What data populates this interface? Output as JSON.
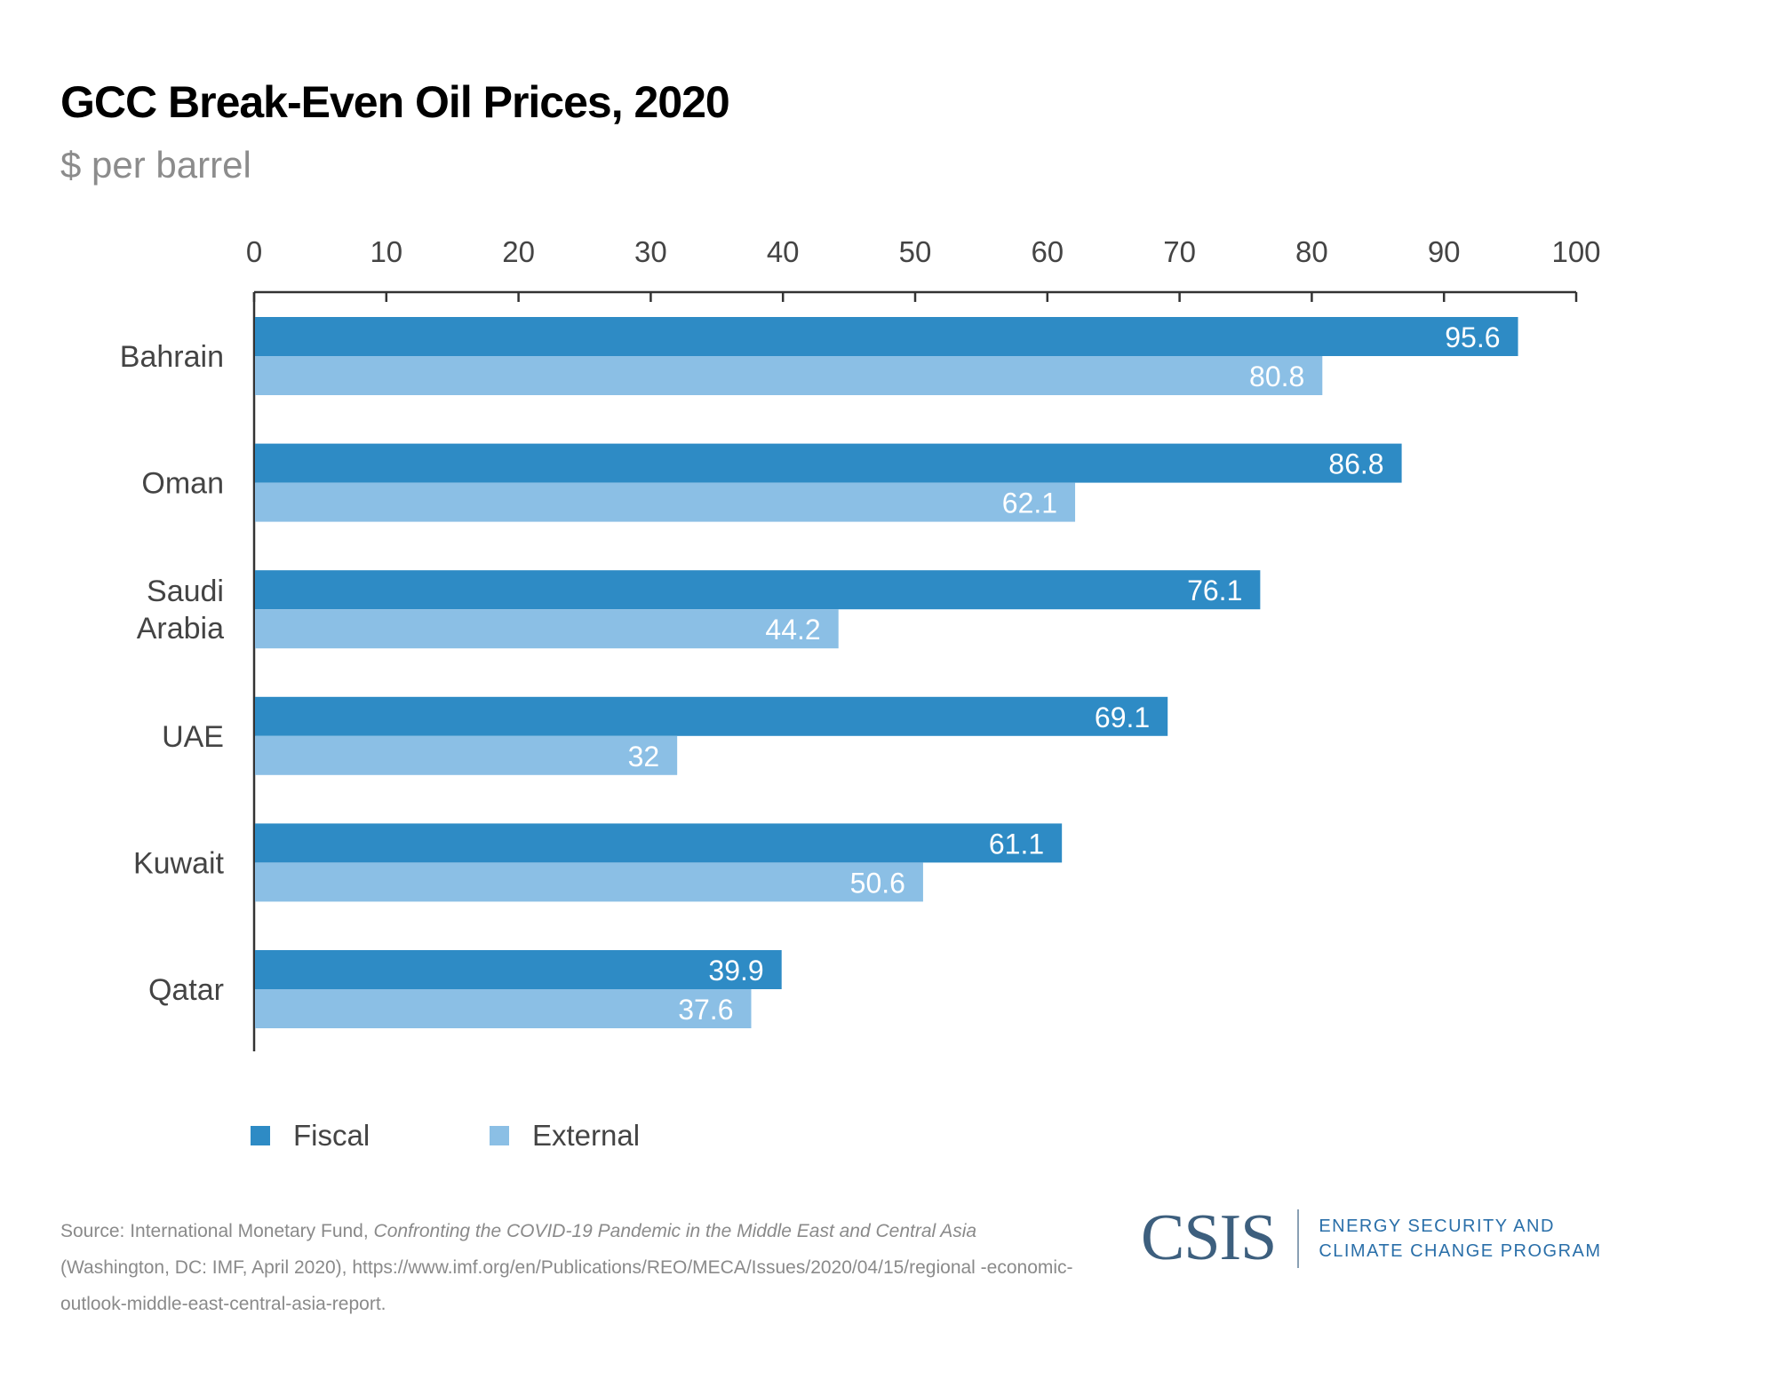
{
  "chart_data": {
    "type": "bar",
    "orientation": "horizontal",
    "title": "GCC Break-Even Oil Prices, 2020",
    "subtitle": "$ per barrel",
    "categories": [
      "Bahrain",
      "Oman",
      "Saudi Arabia",
      "UAE",
      "Kuwait",
      "Qatar"
    ],
    "category_lines": [
      [
        "Bahrain"
      ],
      [
        "Oman"
      ],
      [
        "Saudi",
        "Arabia"
      ],
      [
        "UAE"
      ],
      [
        "Kuwait"
      ],
      [
        "Qatar"
      ]
    ],
    "series": [
      {
        "name": "Fiscal",
        "color": "#2e8bc5",
        "values": [
          95.6,
          86.8,
          76.1,
          69.1,
          61.1,
          39.9
        ],
        "labels": [
          "95.6",
          "86.8",
          "76.1",
          "69.1",
          "61.1",
          "39.9"
        ]
      },
      {
        "name": "External",
        "color": "#8bbfe5",
        "values": [
          80.8,
          62.1,
          44.2,
          32,
          50.6,
          37.6
        ],
        "labels": [
          "80.8",
          "62.1",
          "44.2",
          "32",
          "50.6",
          "37.6"
        ]
      }
    ],
    "xlim": [
      0,
      100
    ],
    "xticks": [
      "0",
      "10",
      "20",
      "30",
      "40",
      "50",
      "60",
      "70",
      "80",
      "90",
      "100"
    ],
    "axis_position": "top",
    "grid": false,
    "legend_position": "bottom-left"
  },
  "source": {
    "prefix": "Source: International Monetary Fund, ",
    "italic": "Confronting the COVID-19 Pandemic in the Middle East and Central Asia",
    "rest": " (Washington, DC: IMF, April 2020), https://www.imf.org/en/Publications/REO/MECA/Issues/2020/04/15/regional -economic-outlook-middle-east-central-asia-report."
  },
  "logo": {
    "wordmark": "CSIS",
    "program_line1": "ENERGY SECURITY AND",
    "program_line2": "CLIMATE CHANGE PROGRAM"
  }
}
